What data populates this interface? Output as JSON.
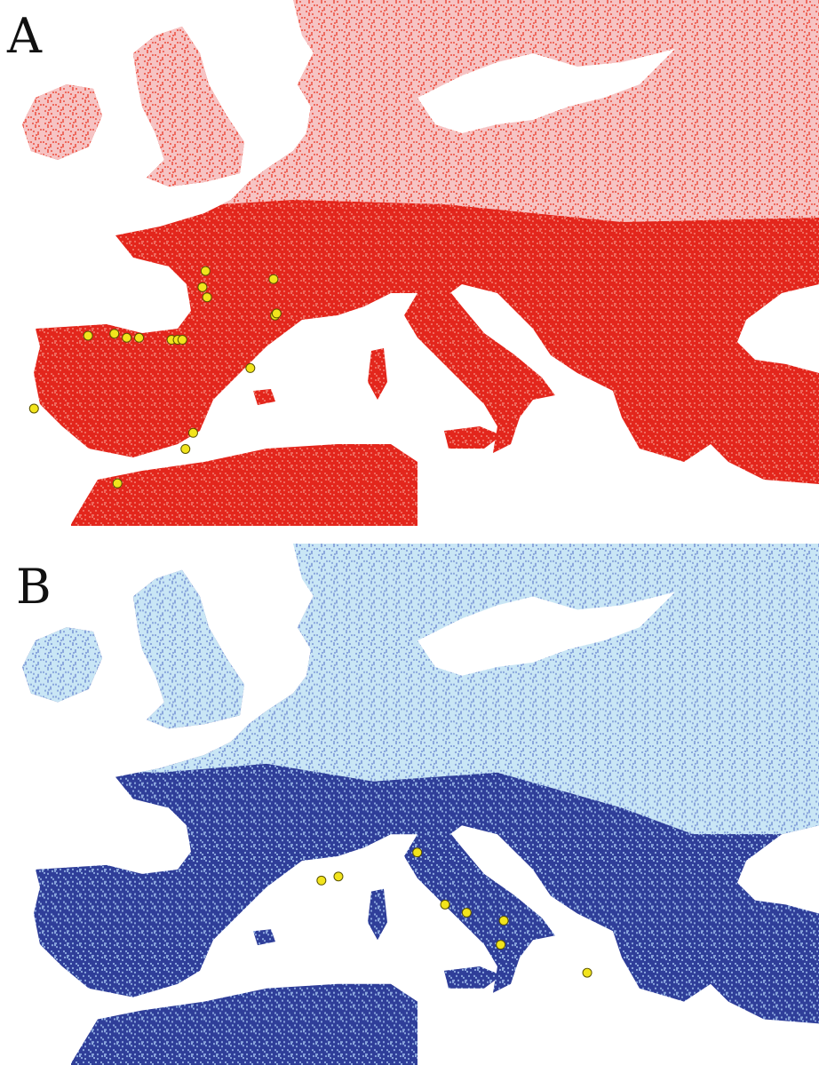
{
  "panels": [
    {
      "label": "A",
      "colors": {
        "high": "#e3261c",
        "mid": "#ee6a5e",
        "low": "#f6c3c3",
        "sea": "#ffffff"
      },
      "points": [
        {
          "lon": -2.7,
          "lat": 46.6
        },
        {
          "lon": -2.9,
          "lat": 45.8
        },
        {
          "lon": -2.6,
          "lat": 45.3
        },
        {
          "lon": 1.7,
          "lat": 46.2
        },
        {
          "lon": 1.8,
          "lat": 44.4
        },
        {
          "lon": 1.9,
          "lat": 44.5
        },
        {
          "lon": -10.3,
          "lat": 43.4
        },
        {
          "lon": -8.6,
          "lat": 43.5
        },
        {
          "lon": -7.8,
          "lat": 43.3
        },
        {
          "lon": -7.0,
          "lat": 43.3
        },
        {
          "lon": -4.9,
          "lat": 43.2
        },
        {
          "lon": -4.5,
          "lat": 43.2
        },
        {
          "lon": -4.2,
          "lat": 43.2
        },
        {
          "lon": 0.2,
          "lat": 41.8
        },
        {
          "lon": -13.8,
          "lat": 39.8
        },
        {
          "lon": -3.5,
          "lat": 38.6
        },
        {
          "lon": -4.0,
          "lat": 37.8
        },
        {
          "lon": -8.4,
          "lat": 36.1
        }
      ]
    },
    {
      "label": "B",
      "colors": {
        "high": "#2f3e99",
        "mid": "#8aa6dc",
        "low": "#c9e6f5",
        "sea": "#ffffff"
      },
      "points": [
        {
          "lon": 11.0,
          "lat": 44.6
        },
        {
          "lon": 4.8,
          "lat": 43.2
        },
        {
          "lon": 5.9,
          "lat": 43.4
        },
        {
          "lon": 12.8,
          "lat": 42.0
        },
        {
          "lon": 14.2,
          "lat": 41.6
        },
        {
          "lon": 16.6,
          "lat": 41.2
        },
        {
          "lon": 16.4,
          "lat": 40.0
        },
        {
          "lon": 22.0,
          "lat": 38.6
        }
      ]
    }
  ]
}
